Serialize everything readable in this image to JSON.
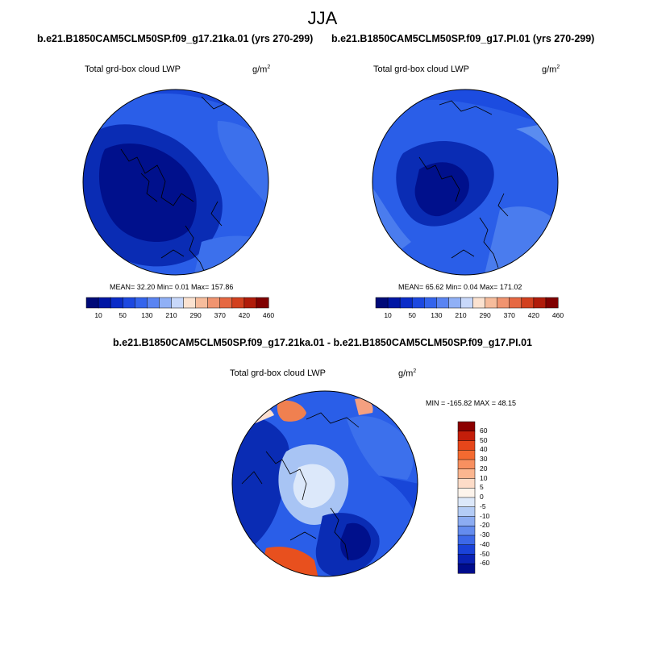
{
  "figure": {
    "season": "JJA",
    "colors": {
      "deep_blue": "#00108c",
      "dark_blue": "#0a2cb4",
      "mid_blue": "#1846d8",
      "blue": "#2a5ee8",
      "light_blue": "#5a8cf0",
      "pale_blue": "#a8c4f4",
      "ice": "#dce8fa",
      "red": "#e8501e"
    }
  },
  "panel_top_left": {
    "case_title": "b.e21.B1850CAM5CLM50SP.f09_g17.21ka.01 (yrs 270-299)",
    "variable": "Total grd-box cloud LWP",
    "units_base": "g/m",
    "units_exp": "2",
    "stats": "MEAN=  32.20  Min=   0.01  Max= 157.86"
  },
  "panel_top_right": {
    "case_title": "b.e21.B1850CAM5CLM50SP.f09_g17.PI.01 (yrs 270-299)",
    "variable": "Total grd-box cloud LWP",
    "units_base": "g/m",
    "units_exp": "2",
    "stats": "MEAN=  65.62  Min=   0.04  Max= 171.02"
  },
  "panel_diff": {
    "case_title": "b.e21.B1850CAM5CLM50SP.f09_g17.21ka.01 - b.e21.B1850CAM5CLM50SP.f09_g17.PI.01",
    "variable": "Total grd-box cloud LWP",
    "units_base": "g/m",
    "units_exp": "2",
    "stats": "MIN = -165.82 MAX =  48.15"
  },
  "chart_data": [
    {
      "type": "heatmap",
      "title": "Total grd-box cloud LWP",
      "projection": "north polar stereographic",
      "case": "b.e21.B1850CAM5CLM50SP.f09_g17.21ka.01 (yrs 270-299)",
      "mean": 32.2,
      "min": 0.01,
      "max": 157.86,
      "colorbar": {
        "orientation": "horizontal",
        "tick_labels": [
          "10",
          "50",
          "130",
          "210",
          "290",
          "370",
          "420",
          "460"
        ],
        "colors": [
          "#000a78",
          "#0016a4",
          "#0a2cc8",
          "#1c48e0",
          "#3464ec",
          "#5a84f2",
          "#90b0f6",
          "#c8d8fa",
          "#fbe2d0",
          "#f6bc9c",
          "#f09470",
          "#e66842",
          "#d2401e",
          "#b01c0a",
          "#800000"
        ]
      }
    },
    {
      "type": "heatmap",
      "title": "Total grd-box cloud LWP",
      "projection": "north polar stereographic",
      "case": "b.e21.B1850CAM5CLM50SP.f09_g17.PI.01 (yrs 270-299)",
      "mean": 65.62,
      "min": 0.04,
      "max": 171.02,
      "colorbar": {
        "orientation": "horizontal",
        "tick_labels": [
          "10",
          "50",
          "130",
          "210",
          "290",
          "370",
          "420",
          "460"
        ],
        "colors": [
          "#000a78",
          "#0016a4",
          "#0a2cc8",
          "#1c48e0",
          "#3464ec",
          "#5a84f2",
          "#90b0f6",
          "#c8d8fa",
          "#fbe2d0",
          "#f6bc9c",
          "#f09470",
          "#e66842",
          "#d2401e",
          "#b01c0a",
          "#800000"
        ]
      }
    },
    {
      "type": "heatmap",
      "title": "Total grd-box cloud LWP",
      "projection": "north polar stereographic",
      "case": "b.e21.B1850CAM5CLM50SP.f09_g17.21ka.01 - b.e21.B1850CAM5CLM50SP.f09_g17.PI.01",
      "min": -165.82,
      "max": 48.15,
      "colorbar": {
        "orientation": "vertical",
        "tick_labels": [
          "60",
          "50",
          "40",
          "30",
          "20",
          "10",
          "5",
          "0",
          "-5",
          "-10",
          "-20",
          "-30",
          "-40",
          "-50",
          "-60"
        ],
        "colors": [
          "#8c0000",
          "#c41e0a",
          "#e6461a",
          "#f46a30",
          "#f89060",
          "#fbb690",
          "#fddcc8",
          "#fdf4ec",
          "#dce8fa",
          "#b4ccf6",
          "#8cacf2",
          "#648cee",
          "#3c68e8",
          "#1a42d8",
          "#0a22b4",
          "#000c8c"
        ]
      }
    }
  ]
}
